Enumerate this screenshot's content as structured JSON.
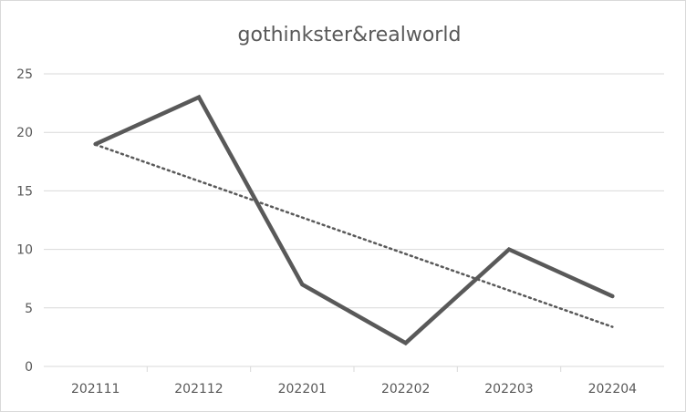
{
  "chart_data": {
    "type": "line",
    "title": "gothinkster&realworld",
    "categories": [
      "202111",
      "202112",
      "202201",
      "202202",
      "202203",
      "202204"
    ],
    "series": [
      {
        "values": [
          19,
          23,
          7,
          2,
          10,
          6
        ],
        "color": "#595959"
      }
    ],
    "trendline": {
      "kind": "linear",
      "style": "dotted",
      "color": "#595959"
    },
    "ylim": [
      0,
      25
    ],
    "yticks": [
      0,
      5,
      10,
      15,
      20,
      25
    ],
    "grid": "horizontal",
    "legend": "none"
  }
}
